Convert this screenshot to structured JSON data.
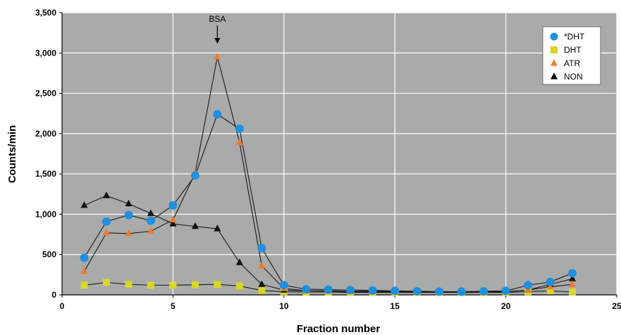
{
  "chart_data": {
    "type": "line",
    "xlabel": "Fraction number",
    "ylabel": "Counts/min",
    "xlim": [
      0,
      25
    ],
    "ylim": [
      0,
      3500
    ],
    "xticks": [
      "0",
      "5",
      "10",
      "15",
      "20",
      "25"
    ],
    "yticks": [
      "0",
      "500",
      "1,000",
      "1,500",
      "2,000",
      "2,500",
      "3,000",
      "3,500"
    ],
    "grid": true,
    "legend_position": "top-right",
    "annotation": {
      "text": "BSA",
      "x": 7,
      "y": 3250
    },
    "series": [
      {
        "name": "*DHT",
        "marker": "circle",
        "color": "#1f8fe0",
        "x": [
          1,
          2,
          3,
          4,
          5,
          6,
          7,
          8,
          9,
          10,
          11,
          12,
          13,
          14,
          15,
          16,
          17,
          18,
          19,
          20,
          21,
          22,
          23
        ],
        "y": [
          460,
          910,
          990,
          920,
          1110,
          1480,
          2240,
          2060,
          580,
          120,
          70,
          65,
          60,
          55,
          50,
          45,
          40,
          40,
          45,
          50,
          120,
          160,
          270
        ]
      },
      {
        "name": "DHT",
        "marker": "square",
        "color": "#d9d62a",
        "x": [
          1,
          2,
          3,
          4,
          5,
          6,
          7,
          8,
          9,
          10,
          11,
          12,
          13,
          14,
          15,
          16,
          17,
          18,
          19,
          20,
          21,
          22,
          23
        ],
        "y": [
          120,
          155,
          130,
          120,
          120,
          125,
          130,
          110,
          55,
          40,
          35,
          35,
          30,
          30,
          30,
          30,
          30,
          30,
          30,
          30,
          40,
          50,
          35
        ]
      },
      {
        "name": "ATR",
        "marker": "triangle",
        "color": "#f07a2a",
        "x": [
          1,
          2,
          3,
          4,
          5,
          6,
          7,
          8,
          9,
          10,
          11,
          12,
          13,
          14,
          15,
          16,
          17,
          18,
          19,
          20,
          21,
          22,
          23
        ],
        "y": [
          290,
          770,
          760,
          790,
          930,
          1510,
          2950,
          1890,
          360,
          80,
          50,
          45,
          40,
          40,
          35,
          35,
          35,
          35,
          35,
          40,
          60,
          100,
          130
        ]
      },
      {
        "name": "NON",
        "marker": "triangle",
        "color": "#111111",
        "x": [
          1,
          2,
          3,
          4,
          5,
          6,
          7,
          8,
          9,
          10,
          11,
          12,
          13,
          14,
          15,
          16,
          17,
          18,
          19,
          20,
          21,
          22,
          23
        ],
        "y": [
          1110,
          1230,
          1130,
          1010,
          880,
          850,
          820,
          400,
          130,
          60,
          50,
          50,
          45,
          45,
          40,
          40,
          35,
          35,
          35,
          40,
          60,
          130,
          200
        ]
      }
    ]
  }
}
